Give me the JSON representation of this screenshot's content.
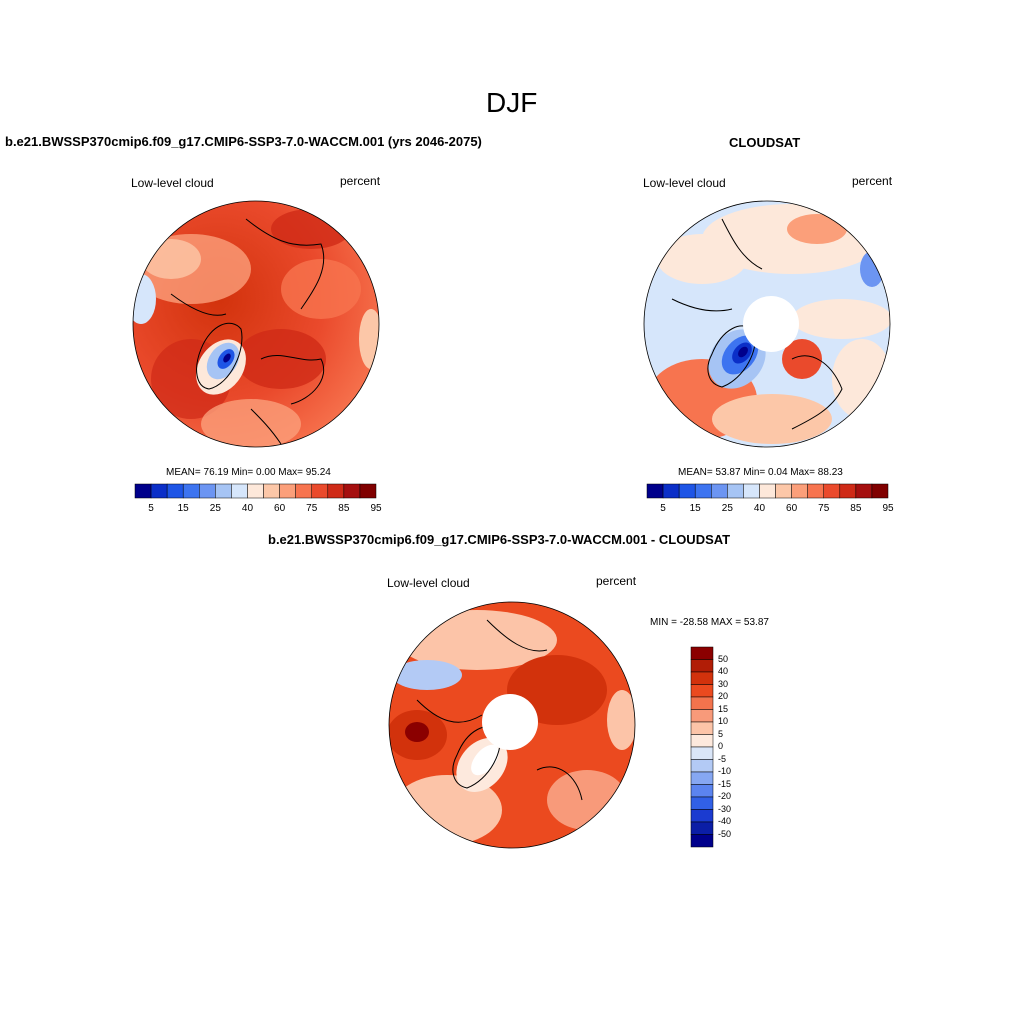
{
  "page_title": "DJF",
  "panels": [
    {
      "id": "model",
      "title": "b.e21.BWSSP370cmip6.f09_g17.CMIP6-SSP3-7.0-WACCM.001 (yrs 2046-2075)",
      "left_label": "Low-level cloud",
      "right_label": "percent",
      "stats": "MEAN=  76.19  Min=   0.00  Max=  95.24",
      "colorbar_ticks": [
        "5",
        "15",
        "25",
        "40",
        "60",
        "75",
        "85",
        "95"
      ],
      "has_pole_hole": false
    },
    {
      "id": "obs",
      "title": "CLOUDSAT",
      "left_label": "Low-level cloud",
      "right_label": "percent",
      "stats": "MEAN=  53.87  Min=   0.04  Max=  88.23",
      "colorbar_ticks": [
        "5",
        "15",
        "25",
        "40",
        "60",
        "75",
        "85",
        "95"
      ],
      "has_pole_hole": true
    },
    {
      "id": "diff",
      "title": "b.e21.BWSSP370cmip6.f09_g17.CMIP6-SSP3-7.0-WACCM.001 - CLOUDSAT",
      "left_label": "Low-level cloud",
      "right_label": "percent",
      "stats": "MIN = -28.58 MAX =  53.87",
      "colorbar_ticks": [
        "50",
        "40",
        "30",
        "20",
        "15",
        "10",
        "5",
        "0",
        "-5",
        "-10",
        "-15",
        "-20",
        "-30",
        "-40",
        "-50"
      ],
      "has_pole_hole": true
    }
  ],
  "colors": {
    "abs_scale": [
      "#00008b",
      "#0b2fc8",
      "#1e55e6",
      "#3d74f0",
      "#6c95f2",
      "#a6c4f4",
      "#d6e6fb",
      "#fde8da",
      "#fcc7a8",
      "#fb9f7a",
      "#f7744f",
      "#ea4a2c",
      "#cf2a17",
      "#a50f0f",
      "#800000"
    ],
    "diff_scale": [
      "#8b0000",
      "#b11d06",
      "#d2320c",
      "#eb4a1f",
      "#f2734d",
      "#f89a7a",
      "#fcc4a8",
      "#fde9dd",
      "#dae6f8",
      "#b3caf5",
      "#86a7f2",
      "#5b84ef",
      "#3160e6",
      "#1b3bd0",
      "#0b1ea6",
      "#00008b"
    ]
  }
}
